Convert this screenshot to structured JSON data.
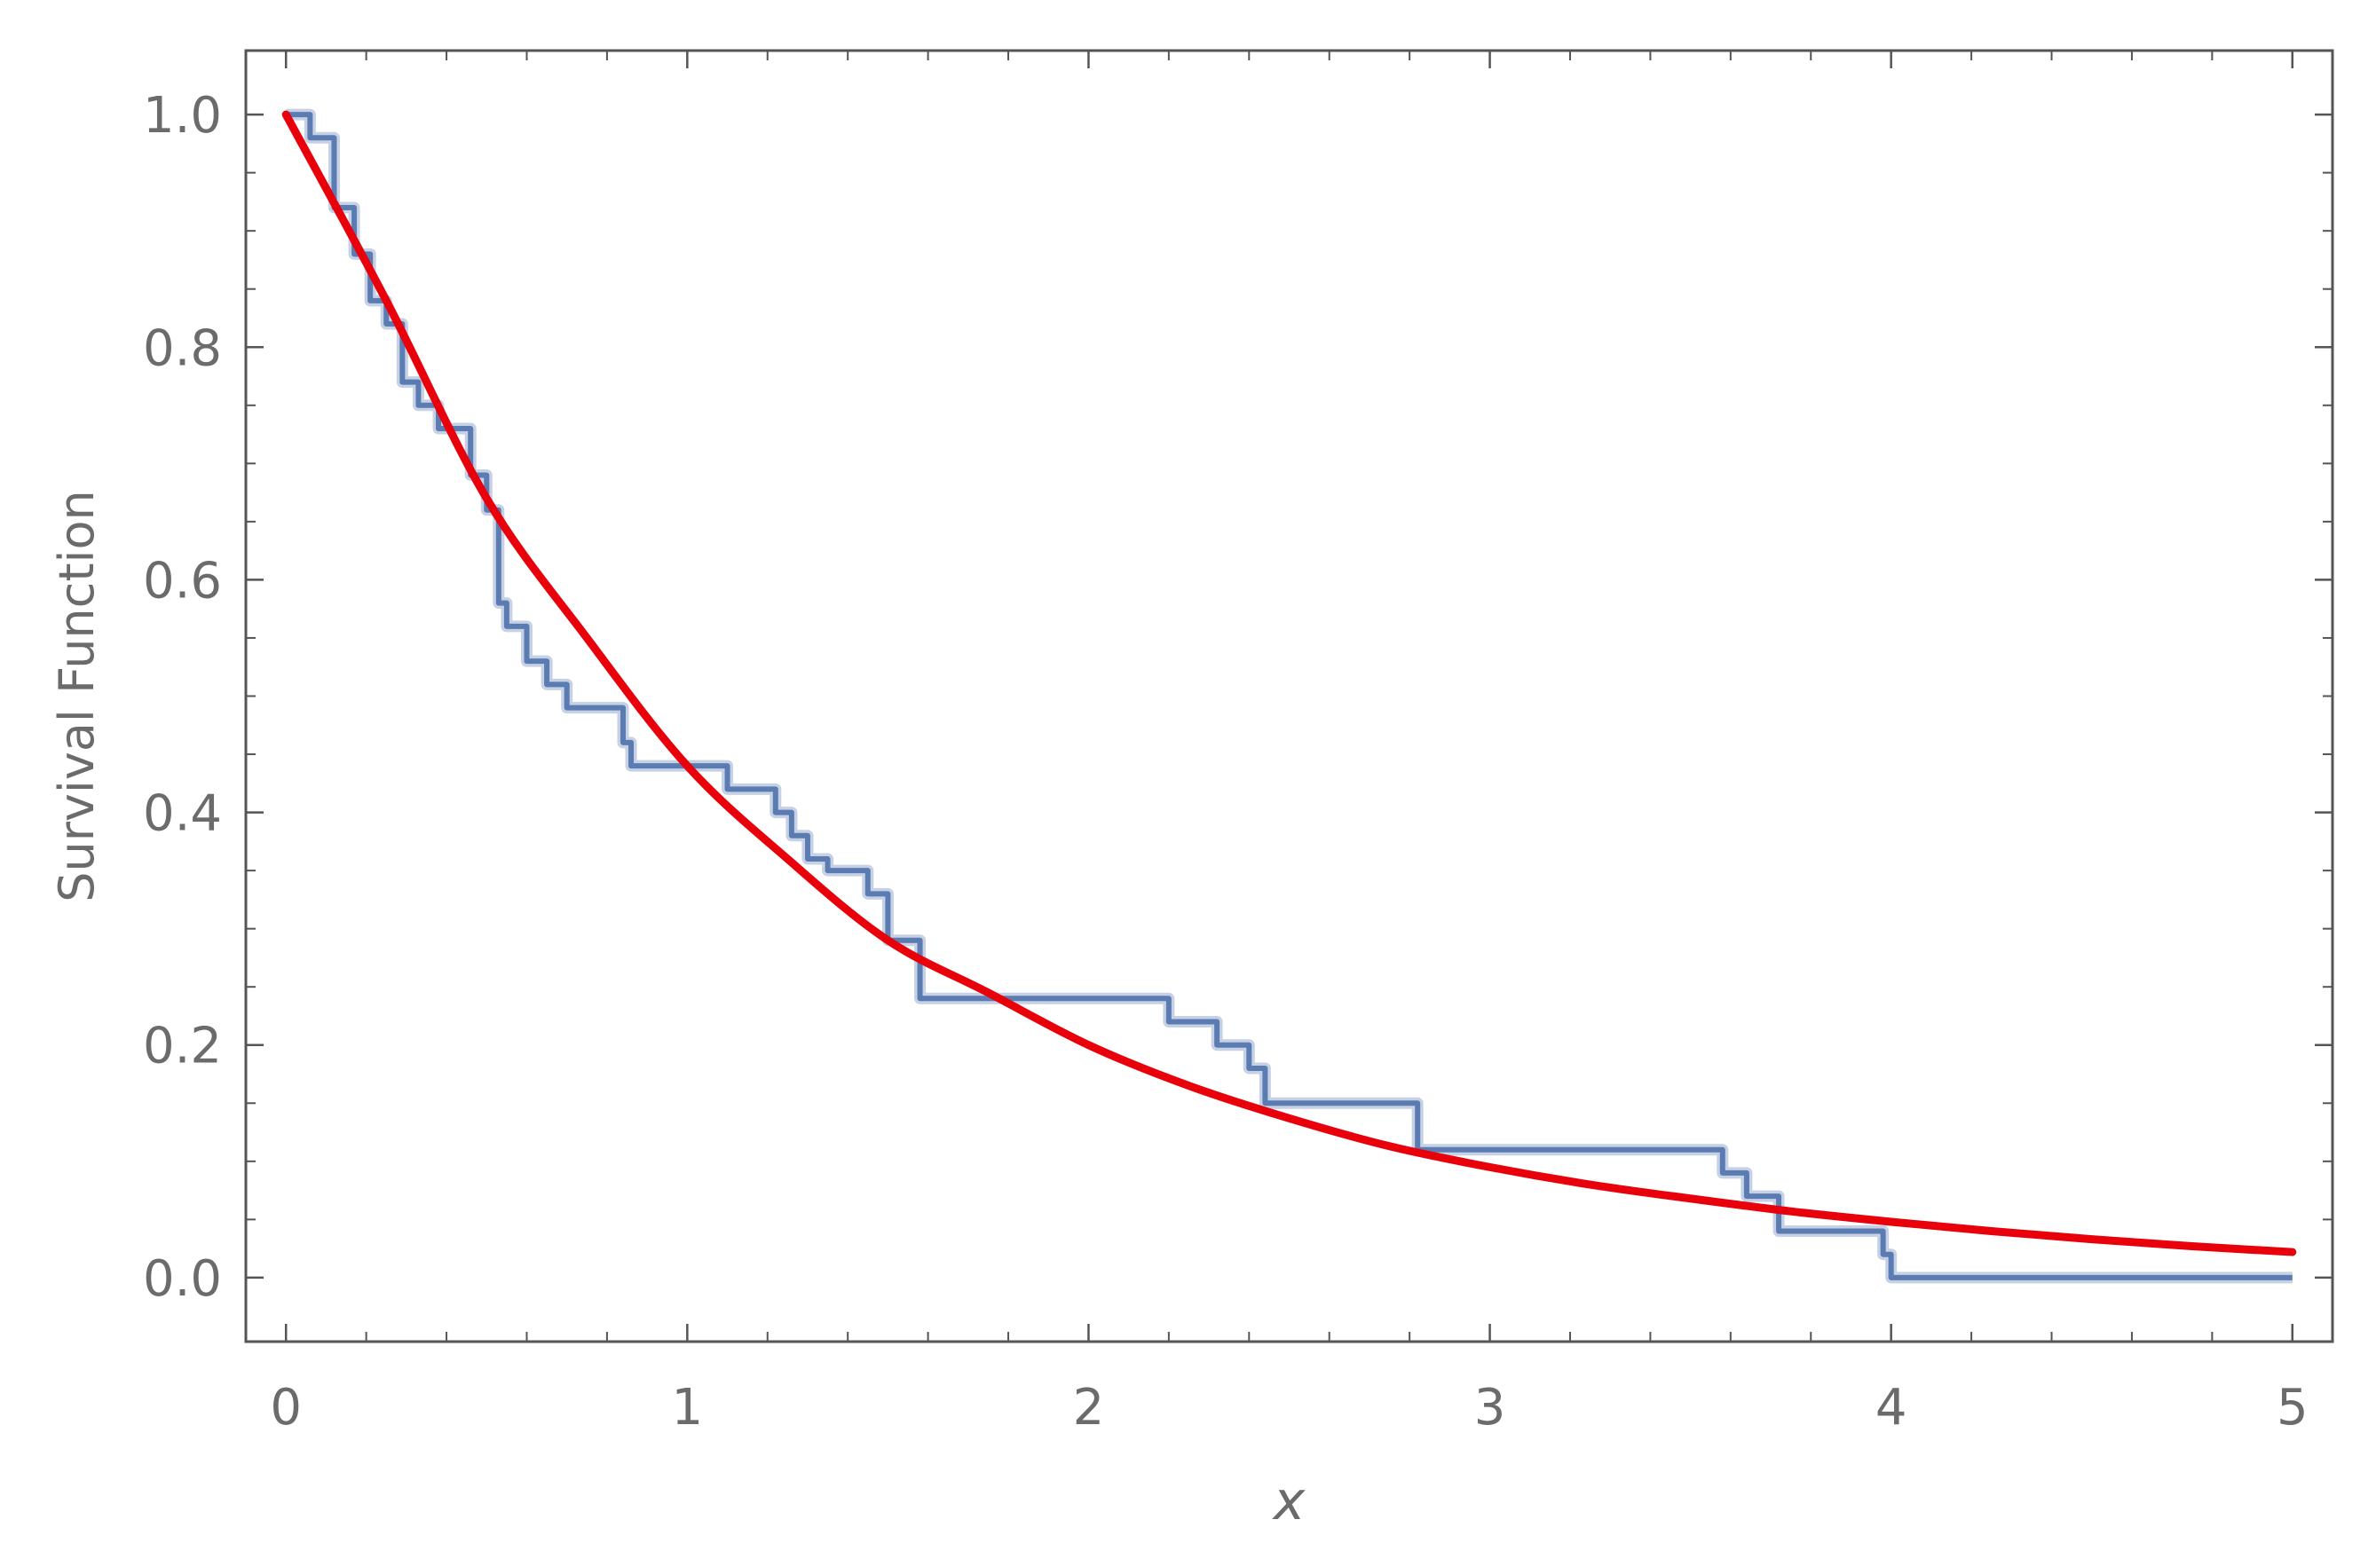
{
  "chart_data": {
    "type": "line",
    "title": "",
    "xlabel": "x",
    "ylabel": "Survival Function",
    "xlim": [
      -0.1,
      5.1
    ],
    "ylim": [
      -0.055,
      1.055
    ],
    "grid": false,
    "x_ticks": [
      0,
      1,
      2,
      3,
      4,
      5
    ],
    "x_tick_labels": [
      "0",
      "1",
      "2",
      "3",
      "4",
      "5"
    ],
    "y_ticks": [
      0.0,
      0.2,
      0.4,
      0.6,
      0.8,
      1.0
    ],
    "y_tick_labels": [
      "0.0",
      "0.2",
      "0.4",
      "0.6",
      "0.8",
      "1.0"
    ],
    "colors": {
      "step": "#5b7bb3",
      "curve": "#e8000b",
      "frame": "#555555"
    },
    "series": [
      {
        "kind": "step",
        "x": [
          0.06,
          0.12,
          0.17,
          0.21,
          0.25,
          0.29,
          0.33,
          0.38,
          0.46,
          0.5,
          0.53,
          0.55,
          0.6,
          0.65,
          0.7,
          0.84,
          0.86,
          1.1,
          1.22,
          1.26,
          1.3,
          1.35,
          1.45,
          1.5,
          1.58,
          2.14,
          2.2,
          2.32,
          2.4,
          2.44,
          2.82,
          3.58,
          3.64,
          3.72,
          3.98,
          4.0
        ],
        "y": [
          0.98,
          0.92,
          0.88,
          0.84,
          0.82,
          0.77,
          0.75,
          0.73,
          0.69,
          0.66,
          0.58,
          0.56,
          0.53,
          0.51,
          0.49,
          0.46,
          0.44,
          0.42,
          0.4,
          0.38,
          0.36,
          0.35,
          0.33,
          0.29,
          0.24,
          0.24,
          0.22,
          0.2,
          0.18,
          0.15,
          0.11,
          0.09,
          0.07,
          0.04,
          0.02,
          0.0
        ],
        "x_start": 0.0,
        "y_start": 1.0,
        "x_end": 5.0
      },
      {
        "kind": "curve",
        "x": [
          0,
          0.25,
          0.5,
          0.75,
          1,
          1.25,
          1.5,
          1.75,
          2,
          2.25,
          2.5,
          2.75,
          3,
          3.25,
          3.5,
          3.75,
          4,
          4.25,
          4.5,
          4.75,
          5
        ],
        "y": [
          1.0,
          0.84,
          0.67,
          0.55,
          0.44,
          0.36,
          0.29,
          0.245,
          0.2,
          0.165,
          0.137,
          0.113,
          0.095,
          0.08,
          0.068,
          0.057,
          0.048,
          0.04,
          0.033,
          0.027,
          0.022
        ]
      }
    ]
  }
}
